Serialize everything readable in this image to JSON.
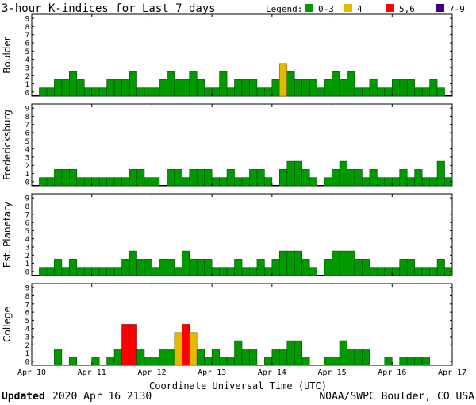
{
  "header": {
    "title": "3-hour K-indices for Last 7 days",
    "legend_label": "Legend:",
    "legend": [
      {
        "label": "0-3",
        "color": "#009900"
      },
      {
        "label": "4",
        "color": "#e6b800"
      },
      {
        "label": "5,6",
        "color": "#ff0000"
      },
      {
        "label": "7-9",
        "color": "#3d0080"
      }
    ]
  },
  "footer": {
    "updated_label": "Updated",
    "updated_value": "2020 Apr 16 2130",
    "source": "NOAA/SWPC Boulder, CO USA"
  },
  "chart_data": {
    "type": "bar",
    "xlabel": "Coordinate Universal Time (UTC)",
    "x_tick_labels": [
      "Apr 10",
      "Apr 11",
      "Apr 12",
      "Apr 13",
      "Apr 14",
      "Apr 15",
      "Apr 16",
      "Apr 17"
    ],
    "ylim": [
      0,
      9
    ],
    "y_ticks": [
      0,
      1,
      2,
      3,
      4,
      5,
      6,
      7,
      8,
      9
    ],
    "intervals_per_day": 8,
    "color_bins": [
      {
        "range": "0-3",
        "color": "#009900",
        "edge": "#004d00"
      },
      {
        "range": "4",
        "color": "#e6b800",
        "edge": "#806600"
      },
      {
        "range": "5,6",
        "color": "#ff0000",
        "edge": "#800000"
      },
      {
        "range": "7-9",
        "color": "#3d0080",
        "edge": "#1f0040"
      }
    ],
    "series": [
      {
        "name": "Boulder",
        "values": [
          0,
          1,
          1,
          2,
          2,
          3,
          2,
          1,
          1,
          1,
          2,
          2,
          2,
          3,
          1,
          1,
          1,
          2,
          3,
          2,
          2,
          3,
          2,
          1,
          1,
          3,
          1,
          2,
          2,
          2,
          1,
          1,
          2,
          4,
          3,
          2,
          2,
          2,
          1,
          2,
          3,
          2,
          3,
          1,
          1,
          2,
          1,
          1,
          2,
          2,
          2,
          1,
          1,
          2,
          1,
          0
        ]
      },
      {
        "name": "Fredericksburg",
        "values": [
          0,
          1,
          1,
          2,
          2,
          2,
          1,
          1,
          1,
          1,
          1,
          1,
          1,
          2,
          2,
          1,
          1,
          0,
          2,
          2,
          1,
          2,
          2,
          2,
          1,
          1,
          2,
          1,
          1,
          2,
          2,
          1,
          0,
          2,
          3,
          3,
          2,
          1,
          0,
          1,
          2,
          3,
          2,
          2,
          1,
          2,
          1,
          1,
          1,
          2,
          1,
          2,
          1,
          1,
          3,
          1,
          0
        ]
      },
      {
        "name": "Est. Planetary",
        "values": [
          0,
          1,
          1,
          2,
          1,
          2,
          1,
          1,
          1,
          1,
          1,
          1,
          2,
          3,
          2,
          2,
          1,
          2,
          2,
          1,
          3,
          2,
          2,
          2,
          1,
          1,
          1,
          2,
          1,
          1,
          2,
          1,
          2,
          3,
          3,
          3,
          2,
          1,
          0,
          2,
          3,
          3,
          3,
          2,
          2,
          1,
          1,
          1,
          1,
          2,
          2,
          1,
          1,
          1,
          2,
          1,
          0
        ]
      },
      {
        "name": "College",
        "values": [
          0,
          0,
          0,
          2,
          0,
          1,
          0,
          0,
          1,
          0,
          1,
          2,
          5,
          5,
          2,
          1,
          1,
          2,
          2,
          4,
          5,
          4,
          2,
          1,
          2,
          1,
          1,
          3,
          2,
          2,
          0,
          1,
          2,
          2,
          3,
          3,
          1,
          0,
          0,
          1,
          1,
          3,
          2,
          2,
          2,
          0,
          0,
          1,
          0,
          1,
          1,
          1,
          1,
          0,
          0,
          0
        ]
      }
    ]
  }
}
